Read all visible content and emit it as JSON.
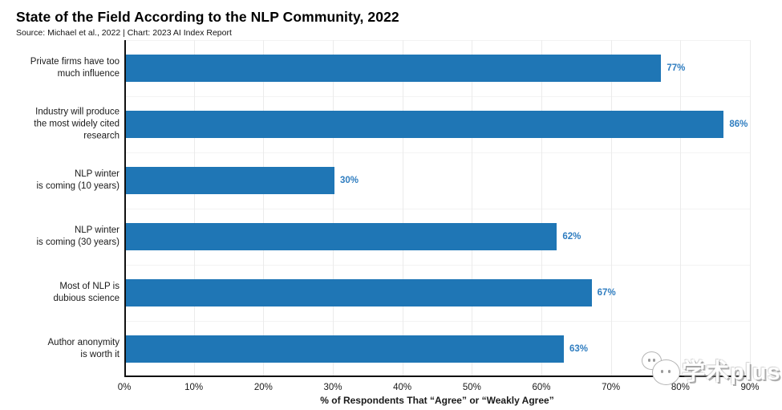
{
  "header": {
    "title": "State of the Field According to the NLP Community, 2022",
    "subtitle": "Source: Michael et al., 2022 | Chart: 2023 AI Index Report"
  },
  "chart_data": {
    "type": "bar",
    "orientation": "horizontal",
    "title": "State of the Field According to the NLP Community, 2022",
    "subtitle": "Source: Michael et al., 2022 | Chart: 2023 AI Index Report",
    "categories": [
      "Private firms have too\nmuch influence",
      "Industry will produce\nthe most widely cited\nresearch",
      "NLP winter\nis coming (10 years)",
      "NLP winter\nis coming (30 years)",
      "Most of NLP is\ndubious science",
      "Author anonymity\nis worth it"
    ],
    "values": [
      77,
      86,
      30,
      62,
      67,
      63
    ],
    "value_labels": [
      "77%",
      "86%",
      "30%",
      "62%",
      "67%",
      "63%"
    ],
    "xlabel": "% of Respondents That “Agree” or “Weakly Agree”",
    "ylabel": "",
    "x_ticks": [
      "0%",
      "10%",
      "20%",
      "30%",
      "40%",
      "50%",
      "60%",
      "70%",
      "80%",
      "90%"
    ],
    "xlim": [
      0,
      90
    ],
    "grid": true,
    "legend": "none",
    "bar_color": "#1F76B5",
    "value_label_color": "#2F7DC0"
  },
  "watermark": {
    "text": "学术plus"
  }
}
